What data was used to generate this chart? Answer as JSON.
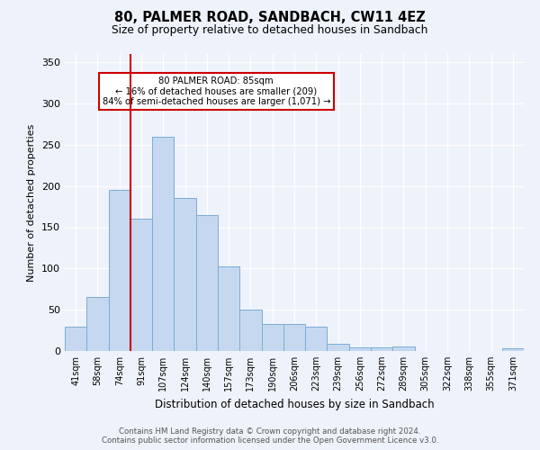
{
  "title1": "80, PALMER ROAD, SANDBACH, CW11 4EZ",
  "title2": "Size of property relative to detached houses in Sandbach",
  "xlabel": "Distribution of detached houses by size in Sandbach",
  "ylabel": "Number of detached properties",
  "bar_labels": [
    "41sqm",
    "58sqm",
    "74sqm",
    "91sqm",
    "107sqm",
    "124sqm",
    "140sqm",
    "157sqm",
    "173sqm",
    "190sqm",
    "206sqm",
    "223sqm",
    "239sqm",
    "256sqm",
    "272sqm",
    "289sqm",
    "305sqm",
    "322sqm",
    "338sqm",
    "355sqm",
    "371sqm"
  ],
  "bar_values": [
    30,
    65,
    195,
    160,
    260,
    185,
    165,
    103,
    50,
    33,
    33,
    30,
    9,
    4,
    4,
    5,
    0,
    0,
    0,
    0,
    3
  ],
  "bar_color": "#c5d8f0",
  "bar_edge_color": "#7aadd4",
  "vline_color": "#cc0000",
  "annotation_text": "80 PALMER ROAD: 85sqm\n← 16% of detached houses are smaller (209)\n84% of semi-detached houses are larger (1,071) →",
  "annotation_box_color": "#ffffff",
  "annotation_box_edge": "#cc0000",
  "ylim": [
    0,
    360
  ],
  "yticks": [
    0,
    50,
    100,
    150,
    200,
    250,
    300,
    350
  ],
  "footer": "Contains HM Land Registry data © Crown copyright and database right 2024.\nContains public sector information licensed under the Open Government Licence v3.0.",
  "bg_color": "#eef2fa",
  "plot_bg_color": "#eef2fa"
}
